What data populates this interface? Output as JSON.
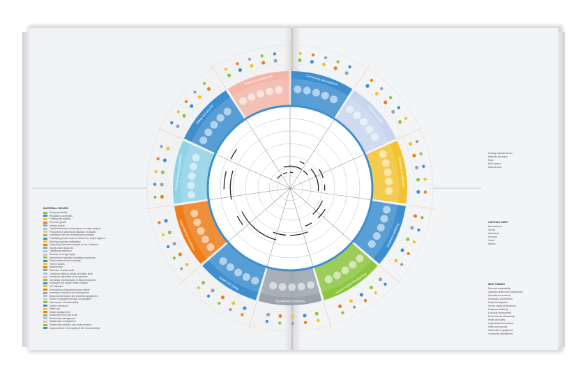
{
  "diagram": {
    "segments": [
      {
        "label": "Community development",
        "color": "#3d8fd0"
      },
      {
        "label": "Financial stability",
        "color": "#c7d6ee"
      },
      {
        "label": "Economic development",
        "color": "#f2c330"
      },
      {
        "label": "Employee wellbeing",
        "color": "#3d8fd0"
      },
      {
        "label": "Human capital development",
        "color": "#8cc63f"
      },
      {
        "label": "Operational excellence",
        "color": "#9aa3ad"
      },
      {
        "label": "Health and safety",
        "color": "#3d8fd0"
      },
      {
        "label": "Organisational excellence",
        "color": "#ef7d1a"
      },
      {
        "label": "Environmental sustainability",
        "color": "#8fd3e8"
      },
      {
        "label": "Safety and security",
        "color": "#3d8fd0"
      },
      {
        "label": "Regional development",
        "color": "#f4b6a8"
      }
    ]
  },
  "legend": {
    "title": "MATERIAL ISSUES",
    "items": [
      "Pricing and tariffs",
      "Regulatory uncertainty",
      "Funding and liquidity",
      "Revenue growth",
      "Volume growth",
      "Capital investment and progress on major projects",
      "Procurement (potential devaluation of assets)",
      "Investing in new and emerging technologies",
      "Facilitating private sector investment in freight logistics",
      "Ensuring customer satisfaction",
      "Expanding Transnet's footprint on the Continent",
      "Supply chain resources",
      "Operational efficiency",
      "Security of energy supply",
      "Adherence to standard operating procedures",
      "Public safety at level crossings",
      "Theft of assets",
      "Absenteeism",
      "Retention of skilled staff",
      "Transnet's ability to attract and retain skills",
      "Having the right skills at the right time",
      "Increasing representation of black employees",
      "Employee and people-related matters",
      "ICT utilisation",
      "Entrenching a high-performance culture",
      "Investing in research and development",
      "Business interruption and incident management",
      "Ethics in engagements with our suppliers",
      "Governance of sustainability",
      "Carbon emissions",
      "Water use",
      "Waste management",
      "Modal shift from road to rail",
      "Biodiversity management",
      "Stakeholder management",
      "Stakeholder relations and communication",
      "Improvements in the quality of life of communities"
    ]
  },
  "right_key": {
    "labels": [
      "Lifelong materials issues",
      "Materials risk areas",
      "Risks",
      "MDS themes",
      "Material issue"
    ]
  },
  "capitals_key": {
    "title": "CAPITALS VIEW",
    "items": [
      "Manufactured",
      "Human",
      "Intellectual",
      "Financial",
      "Social",
      "Natural"
    ]
  },
  "mds_key": {
    "title": "MDS THEMES",
    "items": [
      "Financial sustainability",
      "Capacity creation and maintenance",
      "Operational excellence",
      "Developing shareholders",
      "Regional integration",
      "Human capital development",
      "Employee wellbeing",
      "Economic development",
      "Environmental stewardship",
      "Health and safety",
      "Organisational excellence",
      "Safety and security",
      "Stakeholder engagement",
      "Community development"
    ]
  }
}
